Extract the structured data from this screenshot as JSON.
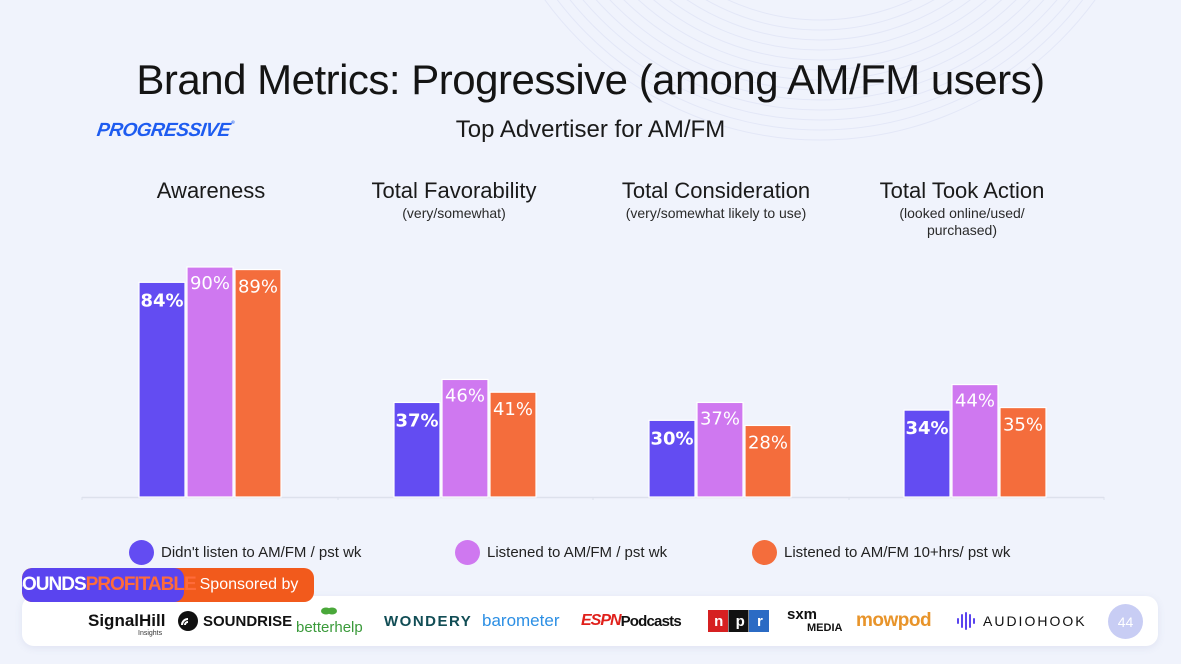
{
  "slide": {
    "title": "Brand Metrics:  Progressive (among AM/FM users)",
    "subtitle": "Top Advertiser for AM/FM",
    "brand_logo_text": "PROGRESSIVE",
    "page_number": "44"
  },
  "chart_data": {
    "type": "bar",
    "title": "Top Advertiser for AM/FM",
    "categories": [
      {
        "label": "Awareness",
        "sublabel": ""
      },
      {
        "label": "Total Favorability",
        "sublabel": "(very/somewhat)"
      },
      {
        "label": "Total Consideration",
        "sublabel": "(very/somewhat likely to use)"
      },
      {
        "label": "Total Took Action",
        "sublabel": "(looked online/used/ purchased)"
      }
    ],
    "series": [
      {
        "name": "Didn't listen to AM/FM / pst wk",
        "color": "#634cf2",
        "values": [
          84,
          37,
          30,
          34
        ]
      },
      {
        "name": "Listened to AM/FM / pst wk",
        "color": "#cf78f0",
        "values": [
          90,
          46,
          37,
          44
        ]
      },
      {
        "name": "Listened to AM/FM 10+hrs/ pst wk",
        "color": "#f46d3c",
        "values": [
          89,
          41,
          28,
          35
        ]
      }
    ],
    "value_suffix": "%",
    "ylim": [
      0,
      100
    ],
    "grid": false,
    "legend_position": "bottom"
  },
  "sponsor": {
    "badge_word1": "SOUNDS",
    "badge_word2": "PROFITABLE",
    "badge_label": "Sponsored by",
    "logos": [
      {
        "name": "signal-hill",
        "text": "SignalHill",
        "sub": "Insights"
      },
      {
        "name": "soundrise",
        "text": "SOUNDRISE"
      },
      {
        "name": "betterhelp",
        "text": "betterhelp"
      },
      {
        "name": "wondery",
        "text": "WONDERY"
      },
      {
        "name": "barometer",
        "text": "barometer"
      },
      {
        "name": "espn-podcasts",
        "text": "ESPN",
        "sub": "Podcasts"
      },
      {
        "name": "npr",
        "text": "npr"
      },
      {
        "name": "sxm-media",
        "text": "sxm",
        "sub": "MEDIA"
      },
      {
        "name": "mowpod",
        "text": "mowpod"
      },
      {
        "name": "audiohook",
        "text": "AUDIOHOOK"
      }
    ]
  }
}
